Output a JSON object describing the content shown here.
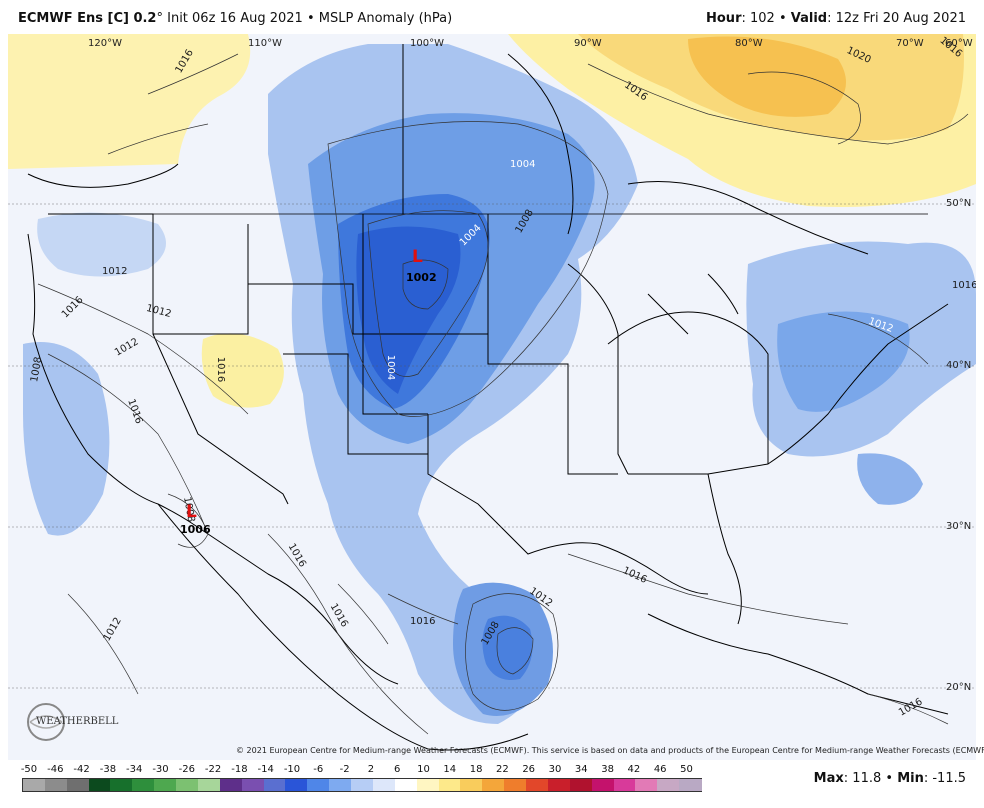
{
  "header": {
    "model": "ECMWF Ens [C] 0.2",
    "degree": "°",
    "init": "Init 06z 16 Aug 2021",
    "sep": " • ",
    "product": "MSLP Anomaly (hPa)",
    "hour_label": "Hour",
    "hour_value": ": 102",
    "valid_label": "Valid",
    "valid_value": ": 12z Fri 20 Aug 2021"
  },
  "map": {
    "lon_labels": [
      "120°W",
      "110°W",
      "100°W",
      "90°W",
      "80°W",
      "70°W",
      "60°W"
    ],
    "lat_labels": [
      "50°N",
      "40°N",
      "30°N",
      "20°N"
    ],
    "contour_labels": [
      "1016",
      "1016",
      "1020",
      "1016",
      "1004",
      "1004",
      "1008",
      "1012",
      "1016",
      "1012",
      "1012",
      "1016",
      "1008",
      "1016",
      "1004",
      "1008",
      "1016",
      "1016",
      "1016",
      "1012",
      "1016",
      "1012",
      "1008",
      "1016",
      "1012",
      "1016"
    ],
    "lows": [
      {
        "symbol": "L",
        "value": "1002"
      },
      {
        "symbol": "L",
        "value": "1006"
      }
    ]
  },
  "credit": "© 2021 European Centre for Medium-range Weather Forecasts (ECMWF). This service is based on data and products of the European Centre for Medium-range Weather Forecasts (ECMWF).",
  "logo": "WEATHERBELL",
  "colorbar": {
    "ticks": [
      "-50",
      "-46",
      "-42",
      "-38",
      "-34",
      "-30",
      "-26",
      "-22",
      "-18",
      "-14",
      "-10",
      "-6",
      "-2",
      "2",
      "6",
      "10",
      "14",
      "18",
      "22",
      "26",
      "30",
      "34",
      "38",
      "42",
      "46",
      "50"
    ],
    "colors": [
      "#a9a9a9",
      "#8c8c8c",
      "#6f6f6f",
      "#0c4a1e",
      "#17702c",
      "#2e8f3c",
      "#4ea84f",
      "#7cc171",
      "#a7d69a",
      "#5e2f8a",
      "#7a4fb0",
      "#5a6fd0",
      "#2a55d8",
      "#4f86e8",
      "#7eaaf0",
      "#b6cdf5",
      "#dde7fa",
      "#ffffff",
      "#fff6c2",
      "#fde98a",
      "#f9cc5c",
      "#f4a63a",
      "#ef7d2c",
      "#e2472a",
      "#c91f2b",
      "#b0122e",
      "#c4126c",
      "#d83a9a",
      "#e27ab6",
      "#c7a8c4",
      "#b9a9c4"
    ],
    "max_label": "Max",
    "max_value": ": 11.8",
    "min_label": "Min",
    "min_value": ": -11.5"
  }
}
